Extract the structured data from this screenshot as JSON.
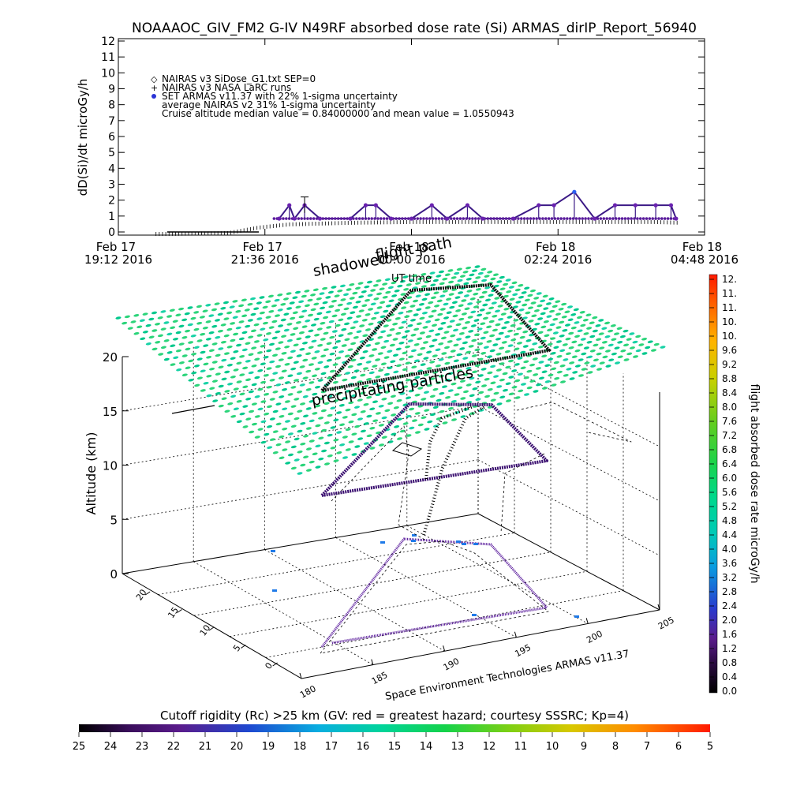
{
  "title": "NOAAAOC_GIV_FM2 G-IV   N49RF  absorbed dose rate (Si) ARMAS_dirIP_Report_56940",
  "top_chart": {
    "ylabel": "dD(Si)/dt microGy/h",
    "y_ticks": [
      "0",
      "1",
      "2",
      "3",
      "4",
      "5",
      "6",
      "7",
      "8",
      "9",
      "10",
      "11",
      "12"
    ],
    "x_ticks": [
      {
        "line1": "Feb 17",
        "line2": "19:12 2016"
      },
      {
        "line1": "Feb 17",
        "line2": "21:36 2016"
      },
      {
        "line1": "Feb 18",
        "line2": "00:00 2016"
      },
      {
        "line1": "Feb 18",
        "line2": "02:24 2016"
      },
      {
        "line1": "Feb 18",
        "line2": "04:48 2016"
      }
    ],
    "xlabel": "UT time",
    "legend": [
      {
        "symbol": "◇",
        "text": "NAIRAS v3 SiDose_G1.txt SEP=0"
      },
      {
        "symbol": "+",
        "text": "NAIRAS v3 NASA LaRC runs"
      },
      {
        "symbol": "●",
        "text": "SET ARMAS v11.37 with 22% 1-sigma uncertainty"
      },
      {
        "symbol": "",
        "text": "average NAIRAS v2 31% 1-sigma uncertainty"
      },
      {
        "symbol": "",
        "text": "Cruise altitude median value = 0.84000000 and mean value = 1.0550943"
      }
    ]
  },
  "plot3d": {
    "zlabel": "Altitude (km)",
    "z_ticks": [
      "0",
      "5",
      "10",
      "15",
      "20"
    ],
    "lat_ticks": [
      "0",
      "5",
      "10",
      "15",
      "20"
    ],
    "lon_ticks": [
      "180",
      "185",
      "190",
      "195",
      "200",
      "205"
    ],
    "annotations": {
      "shadowed": "shadowed",
      "flight_path": "flight path",
      "precipitating": "precipitating particles"
    },
    "credit": "Space Environment Technologies ARMAS v11.37"
  },
  "right_colorbar": {
    "label": "flight absorbed dose rate microGy/h",
    "ticks": [
      "0.0",
      "0.4",
      "0.8",
      "1.2",
      "1.6",
      "2.0",
      "2.4",
      "2.8",
      "3.2",
      "3.6",
      "4.0",
      "4.4",
      "4.8",
      "5.2",
      "5.6",
      "6.0",
      "6.4",
      "6.8",
      "7.2",
      "7.6",
      "8.0",
      "8.4",
      "8.8",
      "9.2",
      "9.6",
      "10.",
      "10.",
      "11.",
      "11.",
      "12."
    ]
  },
  "bottom_colorbar": {
    "label": "Cutoff rigidity (Rc) >25 km (GV: red = greatest hazard; courtesy SSSRC; Kp=4)",
    "ticks": [
      "25",
      "24",
      "23",
      "22",
      "21",
      "20",
      "19",
      "18",
      "17",
      "16",
      "15",
      "14",
      "13",
      "12",
      "11",
      "10",
      "9",
      "8",
      "7",
      "6",
      "5"
    ]
  },
  "chart_data": [
    {
      "type": "scatter",
      "title": "NOAAAOC_GIV_FM2 G-IV   N49RF  absorbed dose rate (Si) ARMAS_dirIP_Report_56940",
      "xlabel": "UT time",
      "ylabel": "dD(Si)/dt microGy/h",
      "ylim": [
        0,
        12
      ],
      "x_range": [
        "2016-02-17 19:12",
        "2016-02-18 04:48"
      ],
      "series": [
        {
          "name": "SET ARMAS v11.37 with 22% 1-sigma uncertainty",
          "points": [
            [
              "21:50",
              0.84
            ],
            [
              "22:00",
              1.68
            ],
            [
              "22:05",
              0.84
            ],
            [
              "22:15",
              1.68
            ],
            [
              "22:30",
              0.84
            ],
            [
              "23:00",
              0.84
            ],
            [
              "23:15",
              1.68
            ],
            [
              "23:25",
              1.68
            ],
            [
              "23:40",
              0.84
            ],
            [
              "00:00",
              0.84
            ],
            [
              "00:20",
              1.68
            ],
            [
              "00:35",
              0.84
            ],
            [
              "00:55",
              1.68
            ],
            [
              "01:10",
              0.84
            ],
            [
              "01:40",
              0.84
            ],
            [
              "02:05",
              1.68
            ],
            [
              "02:20",
              1.68
            ],
            [
              "02:40",
              2.52
            ],
            [
              "03:00",
              0.84
            ],
            [
              "03:20",
              1.68
            ],
            [
              "03:40",
              1.68
            ],
            [
              "04:00",
              1.68
            ],
            [
              "04:15",
              1.68
            ],
            [
              "04:20",
              0.84
            ]
          ]
        },
        {
          "name": "NAIRAS v3 NASA LaRC runs",
          "points": [
            [
              "20:00",
              0.0
            ],
            [
              "21:00",
              0.05
            ],
            [
              "21:30",
              0.4
            ],
            [
              "22:00",
              0.6
            ],
            [
              "23:00",
              0.7
            ],
            [
              "00:00",
              0.75
            ],
            [
              "01:00",
              0.75
            ],
            [
              "02:00",
              0.75
            ],
            [
              "03:00",
              0.75
            ],
            [
              "04:00",
              0.75
            ],
            [
              "04:25",
              0.7
            ]
          ]
        }
      ],
      "grid": false
    },
    {
      "type": "scatter",
      "title": "",
      "zlabel": "Altitude (km)",
      "z_range": [
        0,
        20
      ],
      "lat_range": [
        0,
        25
      ],
      "lon_range": [
        180,
        205
      ],
      "rc_colorbar_range_GV": [
        25,
        5
      ],
      "dose_colorbar_range": [
        0,
        12
      ],
      "grid": true
    }
  ]
}
